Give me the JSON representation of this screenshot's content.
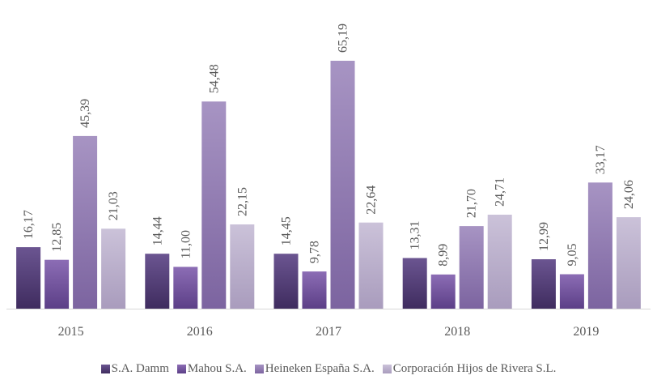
{
  "chart_data": {
    "type": "bar",
    "categories": [
      "2015",
      "2016",
      "2017",
      "2018",
      "2019"
    ],
    "series": [
      {
        "name": "S.A. Damm",
        "values": [
          16.17,
          14.44,
          14.45,
          13.31,
          12.99
        ],
        "labels": [
          "16,17",
          "14,44",
          "14,45",
          "13,31",
          "12,99"
        ],
        "color_top": "#6b5591",
        "color_bottom": "#3f2c5f"
      },
      {
        "name": "Mahou S.A.",
        "values": [
          12.85,
          11.0,
          9.78,
          8.99,
          9.05
        ],
        "labels": [
          "12,85",
          "11,00",
          "9,78",
          "8,99",
          "9,05"
        ],
        "color_top": "#8c6db5",
        "color_bottom": "#5c3f87"
      },
      {
        "name": "Heineken España S.A.",
        "values": [
          45.39,
          54.48,
          65.19,
          21.7,
          33.17
        ],
        "labels": [
          "45,39",
          "54,48",
          "65,19",
          "21,70",
          "33,17"
        ],
        "color_top": "#a794c3",
        "color_bottom": "#7c64a0"
      },
      {
        "name": "Corporación Hijos de Rivera S.L.",
        "values": [
          21.03,
          22.15,
          22.64,
          24.71,
          24.06
        ],
        "labels": [
          "21,03",
          "22,15",
          "22,64",
          "24,71",
          "24,06"
        ],
        "color_top": "#cbc2d9",
        "color_bottom": "#a99cbd"
      }
    ],
    "ylim": [
      0,
      65.19
    ],
    "grid": false,
    "legend_position": "bottom"
  }
}
